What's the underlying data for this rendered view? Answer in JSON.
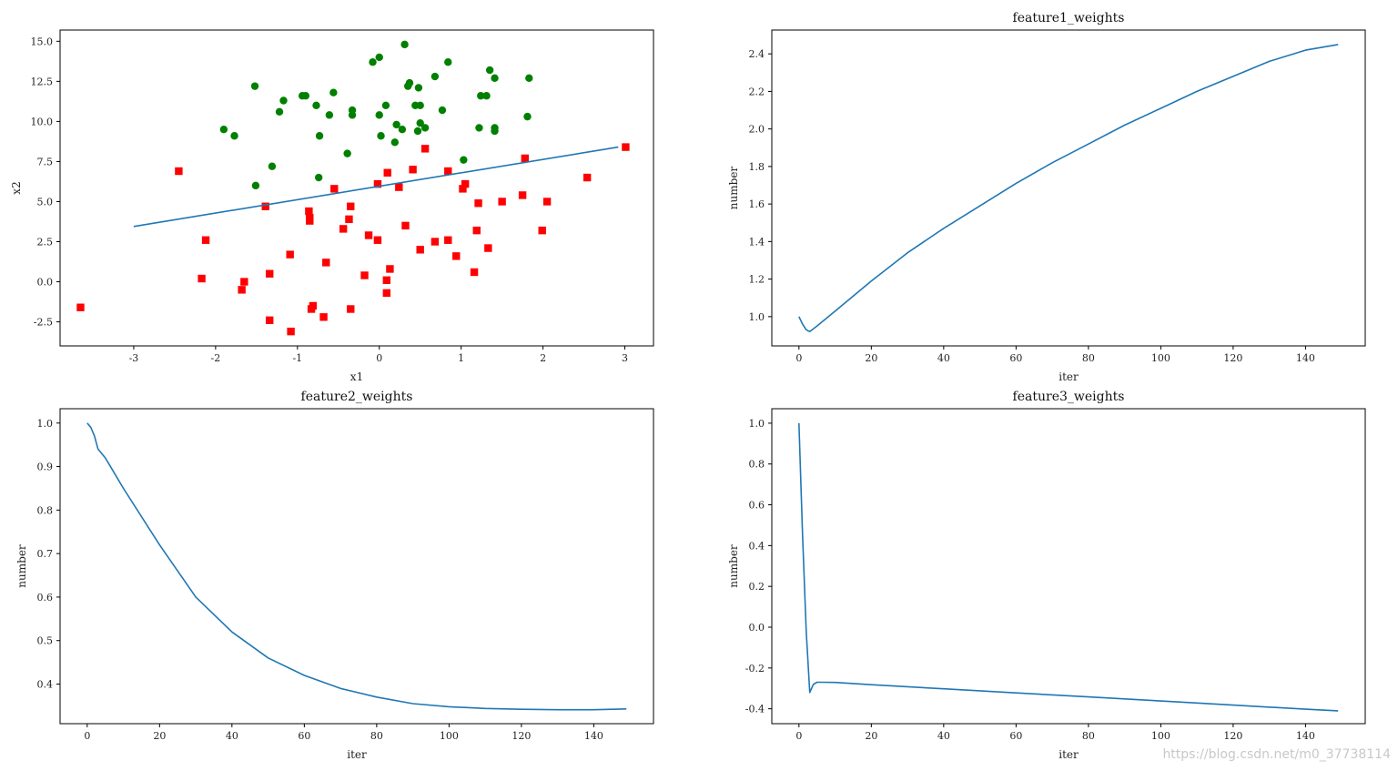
{
  "watermark": "https://blog.csdn.net/m0_37738114",
  "colors": {
    "line": "#1f77b4",
    "class_pos": "#008000",
    "class_neg": "#ff0000",
    "axes": "#000000"
  },
  "chart_data": [
    {
      "id": "scatter",
      "type": "scatter",
      "title": "",
      "xlabel": "x1",
      "ylabel": "x2",
      "xlim": [
        -3.9,
        3.35
      ],
      "ylim": [
        -4.0,
        15.7
      ],
      "xticks": [
        -3,
        -2,
        -1,
        0,
        1,
        2,
        3
      ],
      "xtick_labels": [
        "-3",
        "-2",
        "-1",
        "0",
        "1",
        "2",
        "3"
      ],
      "yticks": [
        -2.5,
        0.0,
        2.5,
        5.0,
        7.5,
        10.0,
        12.5,
        15.0
      ],
      "ytick_labels": [
        "-2.5",
        "0.0",
        "2.5",
        "5.0",
        "7.5",
        "10.0",
        "12.5",
        "15.0"
      ],
      "series": [
        {
          "marker": "circle",
          "color": "#008000",
          "points": [
            [
              0.31,
              14.8
            ],
            [
              0.0,
              14.0
            ],
            [
              -0.08,
              13.7
            ],
            [
              0.84,
              13.7
            ],
            [
              1.35,
              13.2
            ],
            [
              1.41,
              12.7
            ],
            [
              1.83,
              12.7
            ],
            [
              0.68,
              12.8
            ],
            [
              0.37,
              12.4
            ],
            [
              0.35,
              12.2
            ],
            [
              0.48,
              12.1
            ],
            [
              -1.52,
              12.2
            ],
            [
              -0.56,
              11.8
            ],
            [
              -0.94,
              11.6
            ],
            [
              -0.9,
              11.6
            ],
            [
              1.24,
              11.6
            ],
            [
              1.31,
              11.6
            ],
            [
              -1.17,
              11.3
            ],
            [
              -0.77,
              11.0
            ],
            [
              0.08,
              11.0
            ],
            [
              0.44,
              11.0
            ],
            [
              0.5,
              11.0
            ],
            [
              0.77,
              10.7
            ],
            [
              -1.22,
              10.6
            ],
            [
              -0.33,
              10.7
            ],
            [
              -0.33,
              10.4
            ],
            [
              -0.61,
              10.4
            ],
            [
              0.0,
              10.4
            ],
            [
              1.81,
              10.3
            ],
            [
              0.21,
              9.8
            ],
            [
              0.5,
              9.9
            ],
            [
              0.56,
              9.6
            ],
            [
              0.28,
              9.5
            ],
            [
              1.22,
              9.6
            ],
            [
              1.41,
              9.6
            ],
            [
              1.41,
              9.4
            ],
            [
              0.47,
              9.4
            ],
            [
              -1.9,
              9.5
            ],
            [
              -1.77,
              9.1
            ],
            [
              -0.73,
              9.1
            ],
            [
              0.02,
              9.1
            ],
            [
              0.19,
              8.7
            ],
            [
              -0.39,
              8.0
            ],
            [
              1.03,
              7.6
            ],
            [
              -1.31,
              7.2
            ],
            [
              -0.74,
              6.5
            ],
            [
              -1.51,
              6.0
            ]
          ]
        },
        {
          "marker": "square",
          "color": "#ff0000",
          "points": [
            [
              3.01,
              8.4
            ],
            [
              0.56,
              8.3
            ],
            [
              1.78,
              7.7
            ],
            [
              -2.45,
              6.9
            ],
            [
              0.41,
              7.0
            ],
            [
              0.84,
              6.9
            ],
            [
              0.1,
              6.8
            ],
            [
              2.54,
              6.5
            ],
            [
              -0.02,
              6.1
            ],
            [
              1.05,
              6.1
            ],
            [
              0.24,
              5.9
            ],
            [
              1.02,
              5.8
            ],
            [
              -0.55,
              5.8
            ],
            [
              1.75,
              5.4
            ],
            [
              2.05,
              5.0
            ],
            [
              1.5,
              5.0
            ],
            [
              1.21,
              4.9
            ],
            [
              -1.39,
              4.7
            ],
            [
              -0.35,
              4.7
            ],
            [
              -0.86,
              4.4
            ],
            [
              -0.85,
              4.0
            ],
            [
              -0.37,
              3.9
            ],
            [
              -0.85,
              3.8
            ],
            [
              0.32,
              3.5
            ],
            [
              -0.44,
              3.3
            ],
            [
              1.19,
              3.2
            ],
            [
              1.99,
              3.2
            ],
            [
              -0.13,
              2.9
            ],
            [
              -2.12,
              2.6
            ],
            [
              -0.02,
              2.6
            ],
            [
              0.68,
              2.5
            ],
            [
              0.84,
              2.6
            ],
            [
              1.33,
              2.1
            ],
            [
              0.5,
              2.0
            ],
            [
              -1.09,
              1.7
            ],
            [
              0.94,
              1.6
            ],
            [
              -0.65,
              1.2
            ],
            [
              0.13,
              0.8
            ],
            [
              -1.34,
              0.5
            ],
            [
              1.16,
              0.6
            ],
            [
              -0.18,
              0.4
            ],
            [
              -2.17,
              0.2
            ],
            [
              0.09,
              0.1
            ],
            [
              -1.65,
              0.0
            ],
            [
              -1.68,
              -0.5
            ],
            [
              0.09,
              -0.7
            ],
            [
              -0.81,
              -1.5
            ],
            [
              -3.65,
              -1.6
            ],
            [
              -0.83,
              -1.7
            ],
            [
              -0.35,
              -1.7
            ],
            [
              -0.68,
              -2.2
            ],
            [
              -1.34,
              -2.4
            ],
            [
              -1.08,
              -3.1
            ]
          ]
        },
        {
          "marker": "line",
          "color": "#1f77b4",
          "points": [
            [
              -3.0,
              3.45
            ],
            [
              2.92,
              8.4
            ]
          ]
        }
      ]
    },
    {
      "id": "f1",
      "type": "line",
      "title": "feature1_weights",
      "xlabel": "iter",
      "ylabel": "number",
      "xlim": [
        -7.5,
        156.5
      ],
      "ylim": [
        0.844,
        2.527
      ],
      "xticks": [
        0,
        20,
        40,
        60,
        80,
        100,
        120,
        140
      ],
      "xtick_labels": [
        "0",
        "20",
        "40",
        "60",
        "80",
        "100",
        "120",
        "140"
      ],
      "yticks": [
        1.0,
        1.2,
        1.4,
        1.6,
        1.8,
        2.0,
        2.2,
        2.4
      ],
      "ytick_labels": [
        "1.0",
        "1.2",
        "1.4",
        "1.6",
        "1.8",
        "2.0",
        "2.2",
        "2.4"
      ],
      "series": [
        {
          "color": "#1f77b4",
          "x": [
            0,
            1,
            2,
            3,
            5,
            10,
            20,
            30,
            40,
            50,
            60,
            70,
            80,
            90,
            100,
            110,
            120,
            130,
            140,
            149
          ],
          "y": [
            1.0,
            0.96,
            0.93,
            0.92,
            0.95,
            1.03,
            1.19,
            1.34,
            1.47,
            1.59,
            1.71,
            1.82,
            1.92,
            2.02,
            2.11,
            2.2,
            2.28,
            2.36,
            2.42,
            2.45
          ]
        }
      ]
    },
    {
      "id": "f2",
      "type": "line",
      "title": "feature2_weights",
      "xlabel": "iter",
      "ylabel": "number",
      "xlim": [
        -7.5,
        156.5
      ],
      "ylim": [
        0.309,
        1.033
      ],
      "xticks": [
        0,
        20,
        40,
        60,
        80,
        100,
        120,
        140
      ],
      "xtick_labels": [
        "0",
        "20",
        "40",
        "60",
        "80",
        "100",
        "120",
        "140"
      ],
      "yticks": [
        0.4,
        0.5,
        0.6,
        0.7,
        0.8,
        0.9,
        1.0
      ],
      "ytick_labels": [
        "0.4",
        "0.5",
        "0.6",
        "0.7",
        "0.8",
        "0.9",
        "1.0"
      ],
      "series": [
        {
          "color": "#1f77b4",
          "x": [
            0,
            1,
            2,
            3,
            5,
            10,
            20,
            30,
            40,
            50,
            60,
            70,
            80,
            90,
            100,
            110,
            120,
            130,
            140,
            149
          ],
          "y": [
            1.0,
            0.99,
            0.97,
            0.94,
            0.92,
            0.85,
            0.72,
            0.6,
            0.52,
            0.46,
            0.42,
            0.39,
            0.37,
            0.355,
            0.348,
            0.344,
            0.342,
            0.341,
            0.341,
            0.343
          ]
        }
      ]
    },
    {
      "id": "f3",
      "type": "line",
      "title": "feature3_weights",
      "xlabel": "iter",
      "ylabel": "number",
      "xlim": [
        -7.5,
        156.5
      ],
      "ylim": [
        -0.473,
        1.071
      ],
      "xticks": [
        0,
        20,
        40,
        60,
        80,
        100,
        120,
        140
      ],
      "xtick_labels": [
        "0",
        "20",
        "40",
        "60",
        "80",
        "100",
        "120",
        "140"
      ],
      "yticks": [
        -0.4,
        -0.2,
        0.0,
        0.2,
        0.4,
        0.6,
        0.8,
        1.0
      ],
      "ytick_labels": [
        "-0.4",
        "-0.2",
        "0.0",
        "0.2",
        "0.4",
        "0.6",
        "0.8",
        "1.0"
      ],
      "series": [
        {
          "color": "#1f77b4",
          "x": [
            0,
            1,
            2,
            3,
            4,
            5,
            6,
            10,
            20,
            40,
            60,
            80,
            100,
            120,
            140,
            149
          ],
          "y": [
            1.0,
            0.45,
            -0.02,
            -0.32,
            -0.28,
            -0.27,
            -0.27,
            -0.271,
            -0.282,
            -0.302,
            -0.322,
            -0.342,
            -0.362,
            -0.382,
            -0.402,
            -0.41
          ]
        }
      ]
    }
  ]
}
